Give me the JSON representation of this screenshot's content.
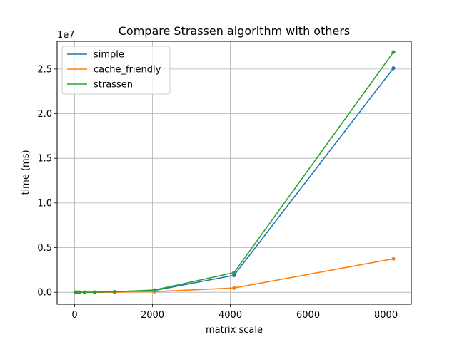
{
  "chart_data": {
    "type": "line",
    "title": "Compare Strassen algorithm with others",
    "xlabel": "matrix scale",
    "ylabel": "time (ms)",
    "y_offset_text": "1e7",
    "xlim": [
      -450,
      8650
    ],
    "ylim": [
      -1340000,
      28100000
    ],
    "x_ticks": [
      0,
      2000,
      4000,
      6000,
      8000
    ],
    "x_tick_labels": [
      "0",
      "2000",
      "4000",
      "6000",
      "8000"
    ],
    "y_ticks": [
      0,
      5000000,
      10000000,
      15000000,
      20000000,
      25000000
    ],
    "y_tick_labels": [
      "0.0",
      "0.5",
      "1.0",
      "1.5",
      "2.0",
      "2.5"
    ],
    "grid": true,
    "legend_position": "top-left",
    "x": [
      16,
      32,
      64,
      128,
      256,
      512,
      1024,
      2048,
      4096,
      8192
    ],
    "series": [
      {
        "name": "simple",
        "color": "#1f77b4",
        "values": [
          0,
          0,
          0,
          0,
          2000,
          10000,
          50000,
          200000,
          1900000,
          25100000
        ]
      },
      {
        "name": "cache_friendly",
        "color": "#ff7f0e",
        "values": [
          0,
          0,
          0,
          0,
          1000,
          5000,
          15000,
          70000,
          480000,
          3750000
        ]
      },
      {
        "name": "strassen",
        "color": "#2ca02c",
        "values": [
          0,
          0,
          0,
          0,
          2000,
          10000,
          60000,
          250000,
          2200000,
          26900000
        ]
      }
    ]
  }
}
